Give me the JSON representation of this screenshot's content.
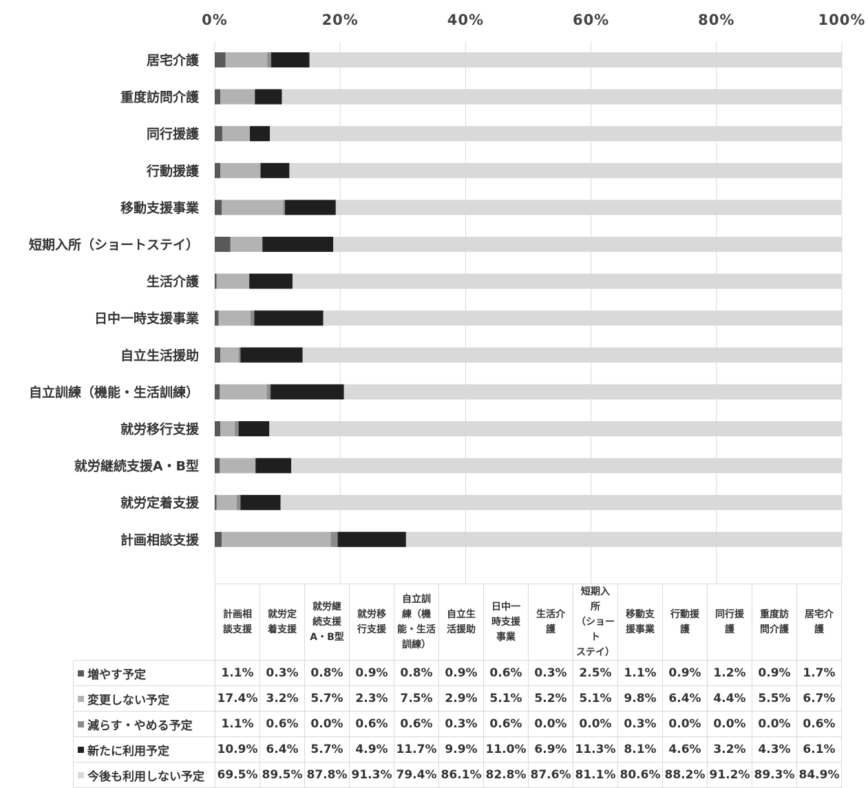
{
  "chart_data": {
    "type": "bar",
    "orientation": "horizontal",
    "stacked": "100%",
    "x_ticks": [
      "0%",
      "20%",
      "40%",
      "60%",
      "80%",
      "100%"
    ],
    "xlim": [
      0,
      100
    ],
    "grid": true,
    "legend_placement": "data table below chart",
    "categories": [
      "計画相談支援",
      "就労定着支援",
      "就労継続支援A・B型",
      "就労移行支援",
      "自立訓練（機能・生活訓練）",
      "自立生活援助",
      "日中一時支援事業",
      "生活介護",
      "短期入所（ショートステイ）",
      "移動支援事業",
      "行動援護",
      "同行援護",
      "重度訪問介護",
      "居宅介護"
    ],
    "table_headers": [
      "計画相\n談支援",
      "就労定\n着支援",
      "就労継\n続支援\nA・B型",
      "就労移\n行支援",
      "自立訓\n練（機\n能・生活\n訓練）",
      "自立生\n活援助",
      "日中一\n時支援\n事業",
      "生活介\n護",
      "短期入\n所\n（ショート\nステイ）",
      "移動支\n援事業",
      "行動援\n護",
      "同行援\n護",
      "重度訪\n問介護",
      "居宅介\n護"
    ],
    "series": [
      {
        "name": "増やす予定",
        "color": "#595959",
        "values": [
          1.1,
          0.3,
          0.8,
          0.9,
          0.8,
          0.9,
          0.6,
          0.3,
          2.5,
          1.1,
          0.9,
          1.2,
          0.9,
          1.7
        ],
        "labels": [
          "1.1%",
          "0.3%",
          "0.8%",
          "0.9%",
          "0.8%",
          "0.9%",
          "0.6%",
          "0.3%",
          "2.5%",
          "1.1%",
          "0.9%",
          "1.2%",
          "0.9%",
          "1.7%"
        ]
      },
      {
        "name": "変更しない予定",
        "color": "#b3b3b3",
        "values": [
          17.4,
          3.2,
          5.7,
          2.3,
          7.5,
          2.9,
          5.1,
          5.2,
          5.1,
          9.8,
          6.4,
          4.4,
          5.5,
          6.7
        ],
        "labels": [
          "17.4%",
          "3.2%",
          "5.7%",
          "2.3%",
          "7.5%",
          "2.9%",
          "5.1%",
          "5.2%",
          "5.1%",
          "9.8%",
          "6.4%",
          "4.4%",
          "5.5%",
          "6.7%"
        ]
      },
      {
        "name": "減らす・やめる予定",
        "color": "#8c8c8c",
        "values": [
          1.1,
          0.6,
          0.0,
          0.6,
          0.6,
          0.3,
          0.6,
          0.0,
          0.0,
          0.3,
          0.0,
          0.0,
          0.0,
          0.6
        ],
        "labels": [
          "1.1%",
          "0.6%",
          "0.0%",
          "0.6%",
          "0.6%",
          "0.3%",
          "0.6%",
          "0.0%",
          "0.0%",
          "0.3%",
          "0.0%",
          "0.0%",
          "0.0%",
          "0.6%"
        ]
      },
      {
        "name": "新たに利用予定",
        "color": "#1f1f1f",
        "values": [
          10.9,
          6.4,
          5.7,
          4.9,
          11.7,
          9.9,
          11.0,
          6.9,
          11.3,
          8.1,
          4.6,
          3.2,
          4.3,
          6.1
        ],
        "labels": [
          "10.9%",
          "6.4%",
          "5.7%",
          "4.9%",
          "11.7%",
          "9.9%",
          "11.0%",
          "6.9%",
          "11.3%",
          "8.1%",
          "4.6%",
          "3.2%",
          "4.3%",
          "6.1%"
        ]
      },
      {
        "name": "今後も利用しない予定",
        "color": "#d9d9d9",
        "values": [
          69.5,
          89.5,
          87.8,
          91.3,
          79.4,
          86.1,
          82.8,
          87.6,
          81.1,
          80.6,
          88.2,
          91.2,
          89.3,
          84.9
        ],
        "labels": [
          "69.5%",
          "89.5%",
          "87.8%",
          "91.3%",
          "79.4%",
          "86.1%",
          "82.8%",
          "87.6%",
          "81.1%",
          "80.6%",
          "88.2%",
          "91.2%",
          "89.3%",
          "84.9%"
        ]
      }
    ]
  }
}
